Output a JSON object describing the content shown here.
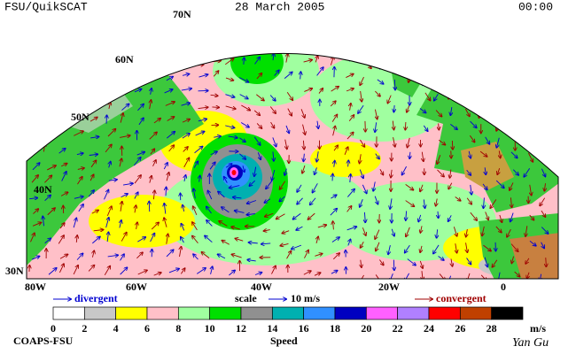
{
  "header": {
    "left": "FSU/QuikSCAT",
    "center": "28 March 2005",
    "right": "00:00"
  },
  "map": {
    "lat_labels": [
      "70N",
      "60N",
      "50N",
      "40N",
      "30N"
    ],
    "lon_labels": [
      "80W",
      "60W",
      "40W",
      "20W",
      "0"
    ]
  },
  "legend": {
    "divergent": "divergent",
    "scale": "scale",
    "scale_value": "10 m/s",
    "convergent": "convergent"
  },
  "colorbar": {
    "labels": [
      0,
      2,
      4,
      6,
      8,
      10,
      12,
      14,
      16,
      18,
      20,
      22,
      24,
      26,
      28
    ],
    "colors": [
      "#ffffff",
      "#c8c8c8",
      "#ffff00",
      "#ffc0c8",
      "#a0ffa0",
      "#00e000",
      "#909090",
      "#00b0b0",
      "#3090ff",
      "#0000c0",
      "#ff60ff",
      "#b080ff",
      "#ff0000",
      "#c04000",
      "#000000"
    ],
    "unit": "m/s",
    "title": "Speed"
  },
  "footer": {
    "left": "COAPS-FSU",
    "signature": "Yan Gu"
  }
}
